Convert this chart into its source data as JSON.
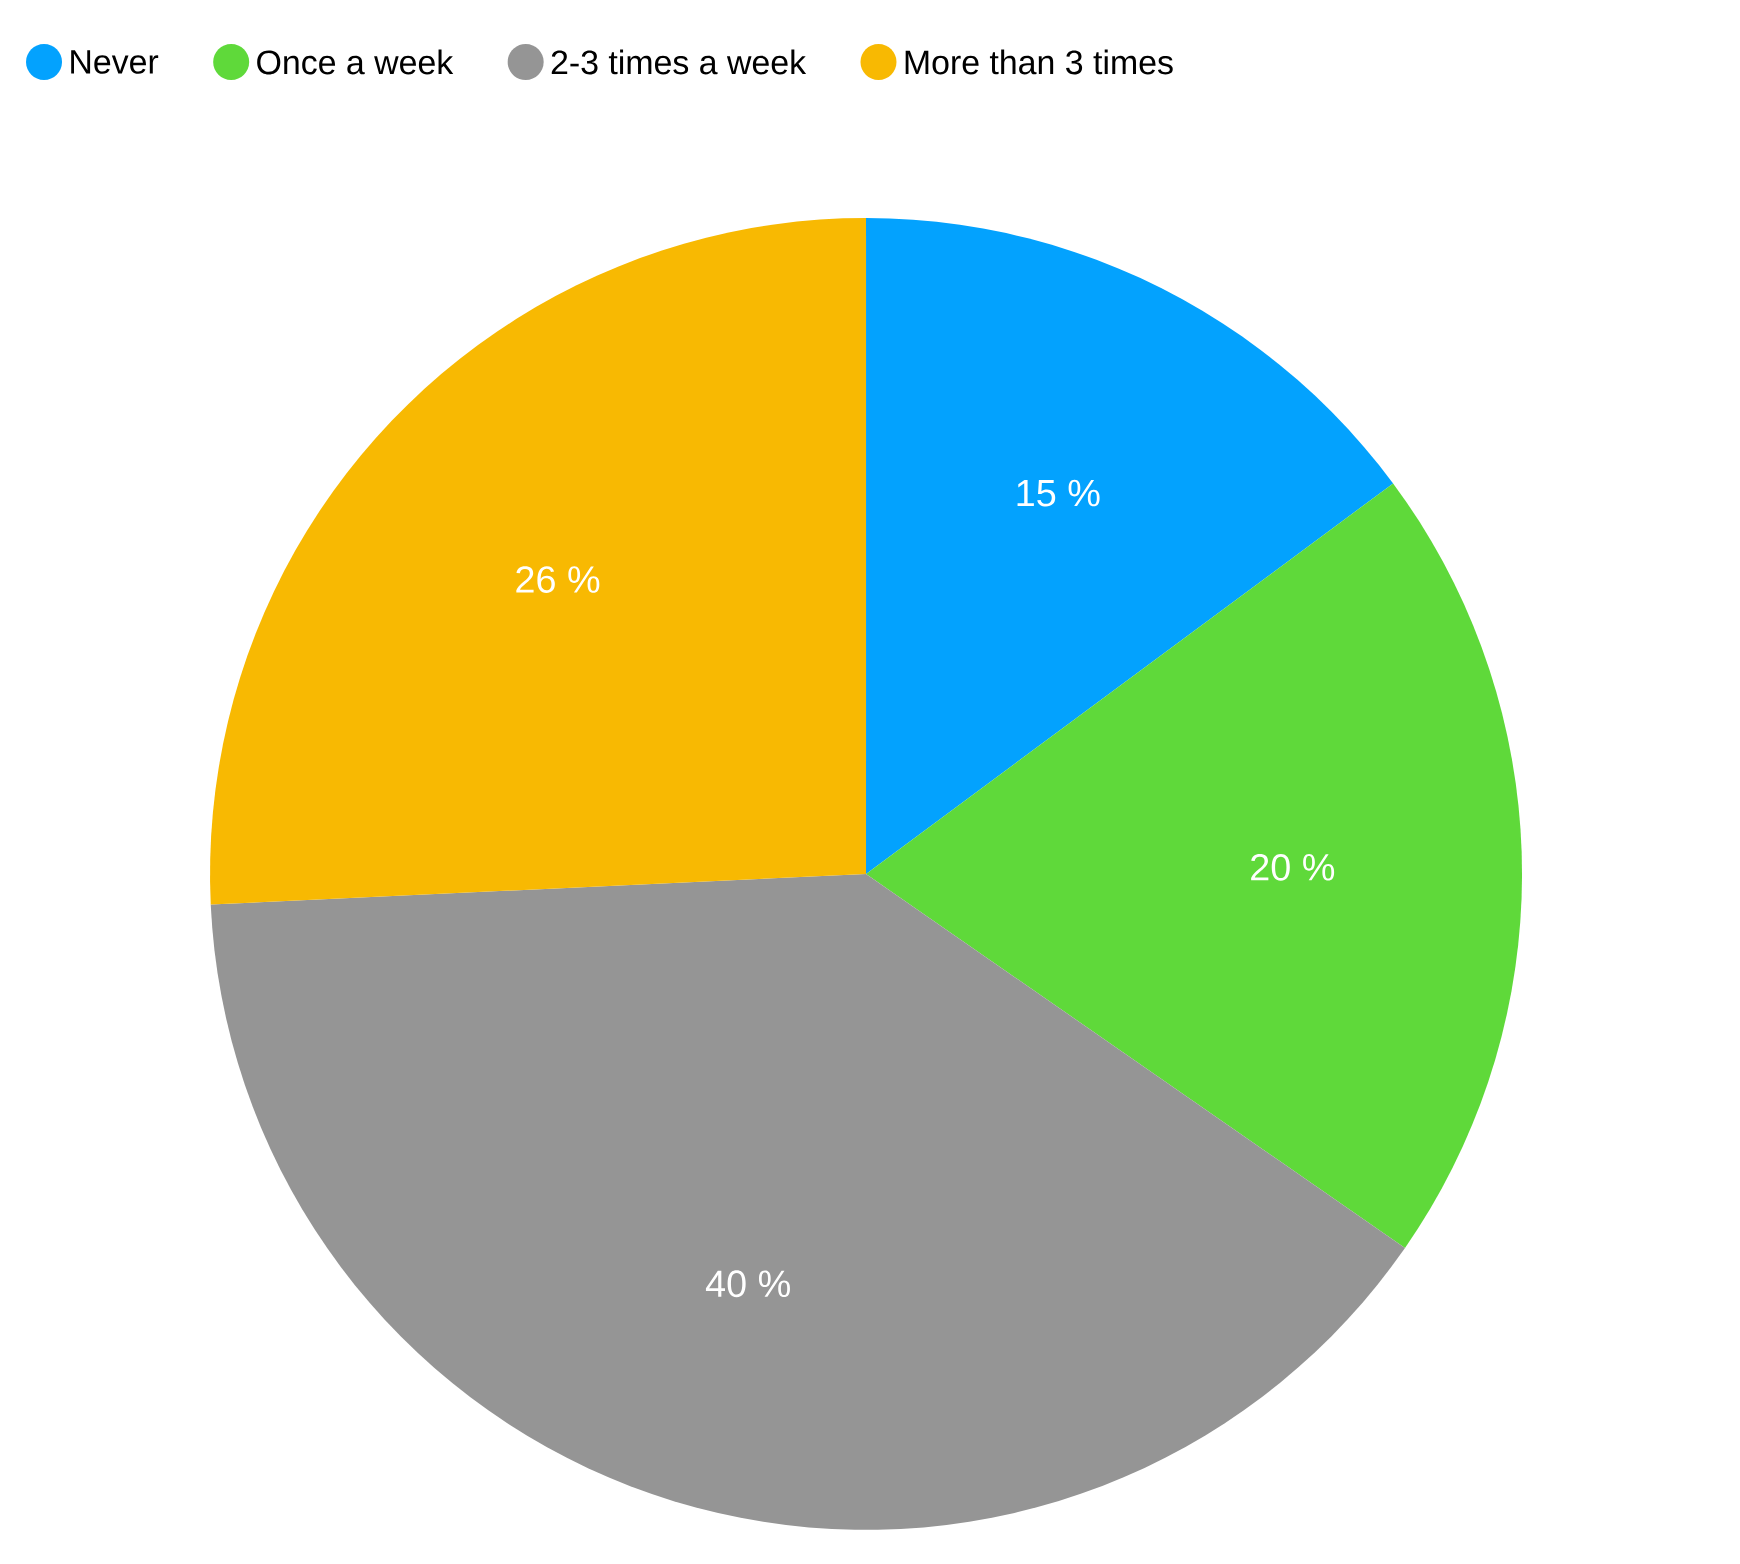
{
  "chart_data": {
    "type": "pie",
    "categories": [
      "Never",
      "Once a week",
      "2-3 times a week",
      "More than 3 times"
    ],
    "values": [
      15,
      20,
      40,
      26
    ],
    "colors": [
      "#03a2fe",
      "#5fd93a",
      "#959595",
      "#f8b902"
    ],
    "value_labels": [
      "15 %",
      "20 %",
      "40 %",
      "26 %"
    ],
    "legend": "top"
  }
}
